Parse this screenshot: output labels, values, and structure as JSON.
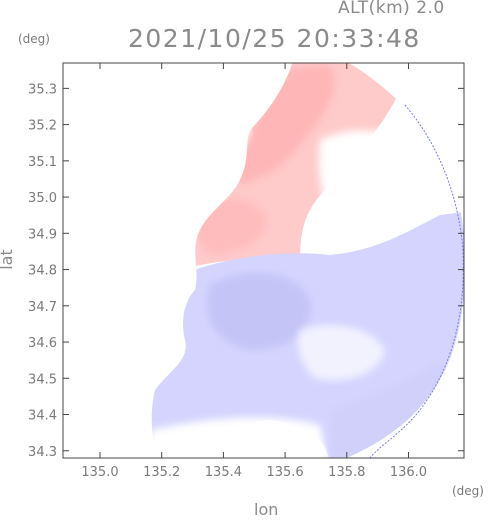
{
  "header": {
    "altitude_label": "ALT(km) 2.0",
    "timestamp": "2021/10/25 20:33:48"
  },
  "axes": {
    "y_unit": "(deg)",
    "x_unit": "(deg)",
    "x_title": "lon",
    "y_title": "lat",
    "x_ticks": [
      "135.0",
      "135.2",
      "135.4",
      "135.6",
      "135.8",
      "136.0"
    ],
    "y_ticks": [
      "35.3",
      "35.2",
      "35.1",
      "35.0",
      "34.9",
      "34.8",
      "34.7",
      "34.6",
      "34.5",
      "34.4",
      "34.3"
    ]
  },
  "chart_data": {
    "type": "heatmap",
    "xlim": [
      134.88,
      136.18
    ],
    "ylim": [
      34.28,
      35.37
    ],
    "field": "radar velocity field (positive red, negative blue)",
    "colors": {
      "positive": "#ffc8c8",
      "positive_strong": "#ffb4b4",
      "negative": "#d2d2ff",
      "negative_strong": "#c0c0f6",
      "zero": "#ffffff"
    }
  }
}
